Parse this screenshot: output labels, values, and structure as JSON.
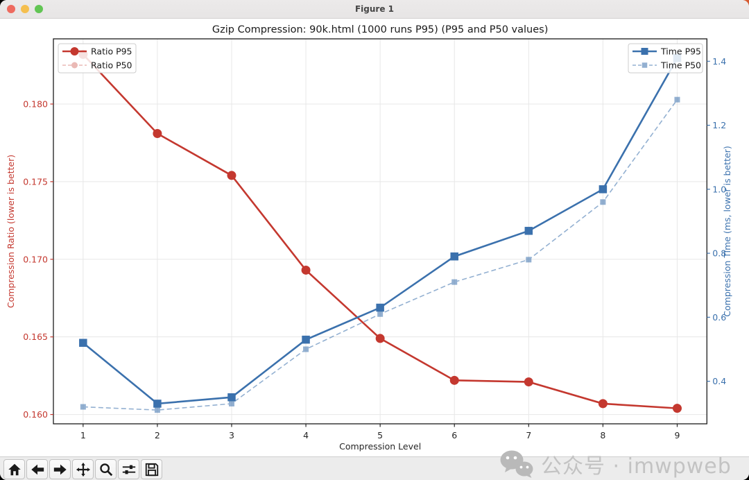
{
  "window": {
    "title": "Figure 1",
    "traffic_lights": {
      "close_color": "#ee6a5f",
      "minimize_color": "#f5bf4f",
      "zoom_color": "#62c554"
    }
  },
  "chart_data": {
    "type": "line",
    "title": "Gzip Compression: 90k.html (1000 runs P95) (P95 and P50 values)",
    "xlabel": "Compression Level",
    "ylabel_left": "Compression Ratio (lower is better)",
    "ylabel_right": "Compression Time (ms, lower is better)",
    "grid": true,
    "x": [
      1,
      2,
      3,
      4,
      5,
      6,
      7,
      8,
      9
    ],
    "xtick_labels": [
      "1",
      "2",
      "3",
      "4",
      "5",
      "6",
      "7",
      "8",
      "9"
    ],
    "xlim": [
      0.6,
      9.4
    ],
    "ylim_left": [
      0.1594,
      0.1842
    ],
    "ylim_right": [
      0.267,
      1.47
    ],
    "yticks_left": [
      0.16,
      0.165,
      0.17,
      0.175,
      0.18
    ],
    "ytick_left_labels": [
      "0.160",
      "0.165",
      "0.170",
      "0.175",
      "0.180"
    ],
    "yticks_right": [
      0.4,
      0.6,
      0.8,
      1.0,
      1.2,
      1.4
    ],
    "ytick_right_labels": [
      "0.4",
      "0.6",
      "0.8",
      "1.0",
      "1.2",
      "1.4"
    ],
    "axis_color_left": "#c4382f",
    "axis_color_right": "#3b71ad",
    "series": [
      {
        "name": "Ratio P50",
        "axis": "left",
        "legend": "left",
        "color": "#c4382f",
        "style": "dashed",
        "alpha": 0.35,
        "marker": "circle",
        "values": [
          0.1832,
          0.1781,
          0.1754,
          0.1693,
          0.1649,
          0.1622,
          0.1621,
          0.1607,
          0.1604
        ]
      },
      {
        "name": "Ratio P95",
        "axis": "left",
        "legend": "left",
        "color": "#c4382f",
        "style": "solid",
        "alpha": 1,
        "marker": "circle",
        "values": [
          0.1832,
          0.1781,
          0.1754,
          0.1693,
          0.1649,
          0.1622,
          0.1621,
          0.1607,
          0.1604
        ]
      },
      {
        "name": "Time P50",
        "axis": "right",
        "legend": "right",
        "color": "#3b71ad",
        "style": "dashed",
        "alpha": 0.55,
        "marker": "square",
        "values": [
          0.32,
          0.31,
          0.33,
          0.5,
          0.61,
          0.71,
          0.78,
          0.96,
          1.28
        ]
      },
      {
        "name": "Time P95",
        "axis": "right",
        "legend": "right",
        "color": "#3b71ad",
        "style": "solid",
        "alpha": 1,
        "marker": "square",
        "values": [
          0.52,
          0.33,
          0.35,
          0.53,
          0.63,
          0.79,
          0.87,
          1.0,
          1.41
        ]
      }
    ],
    "legend_left_order": [
      "Ratio P95",
      "Ratio P50"
    ],
    "legend_right_order": [
      "Time P95",
      "Time P50"
    ]
  },
  "toolbar": {
    "buttons": [
      {
        "name": "home"
      },
      {
        "name": "back"
      },
      {
        "name": "forward"
      },
      {
        "name": "pan"
      },
      {
        "name": "zoom"
      },
      {
        "name": "configure-subplots"
      },
      {
        "name": "save"
      }
    ]
  },
  "watermark": {
    "text": "公众号 · imwpweb",
    "icon": "wechat-icon",
    "color": "#c3c3c3"
  },
  "colors": {
    "grid": "#e7e7e7",
    "spine": "#1a1a1a",
    "title_text": "#1a1a1a",
    "tick_text": "#262626"
  }
}
